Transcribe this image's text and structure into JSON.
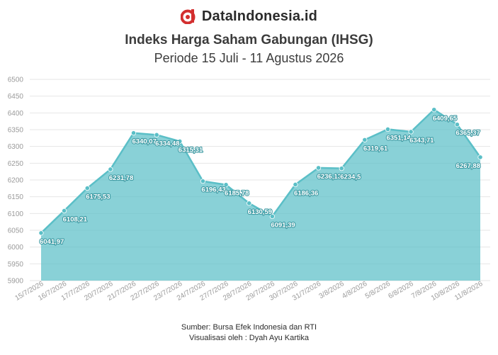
{
  "brand": {
    "name": "DataIndonesia.id",
    "logo_icon": "dataindonesia-logo-icon",
    "logo_color": "#d32f2f"
  },
  "chart_data": {
    "type": "area",
    "title": "Indeks Harga Saham Gabungan (IHSG)",
    "subtitle": "Periode 15 Juli - 11 Agustus 2026",
    "xlabel": "",
    "ylabel": "",
    "ylim": [
      5900,
      6500
    ],
    "yticks": [
      5900,
      5950,
      6000,
      6050,
      6100,
      6150,
      6200,
      6250,
      6300,
      6350,
      6400,
      6450,
      6500
    ],
    "grid": true,
    "color": "#5bbfc7",
    "categories": [
      "15/7/2026",
      "16/7/2026",
      "17/7/2026",
      "20/7/2026",
      "21/7/2026",
      "22/7/2026",
      "23/7/2026",
      "24/7/2026",
      "27/7/2026",
      "28/7/2026",
      "29/7/2026",
      "30/7/2026",
      "31/7/2026",
      "3/8/2026",
      "4/8/2026",
      "5/8/2026",
      "6/8/2026",
      "7/8/2026",
      "10/8/2026",
      "11/8/2026"
    ],
    "values": [
      6041.97,
      6108.21,
      6175.53,
      6231.78,
      6340.07,
      6334.48,
      6315.31,
      6196.43,
      6185.78,
      6130.59,
      6091.39,
      6186.36,
      6236.13,
      6234.5,
      6319.61,
      6351.14,
      6343.71,
      6409.65,
      6365.37,
      6267.88
    ],
    "data_labels": [
      "6041,97",
      "6108,21",
      "6175,53",
      "6231,78",
      "6340,07",
      "6334,48",
      "6315,31",
      "6196,43",
      "6185,78",
      "6130,59",
      "6091,39",
      "6186,36",
      "6236,13",
      "6234,5",
      "6319,61",
      "6351,14",
      "6343,71",
      "6409,65",
      "6365,37",
      "6267,88"
    ]
  },
  "footer": {
    "source": "Sumber: Bursa Efek Indonesia dan RTI",
    "credit": "Visualisasi oleh : Dyah Ayu Kartika"
  }
}
